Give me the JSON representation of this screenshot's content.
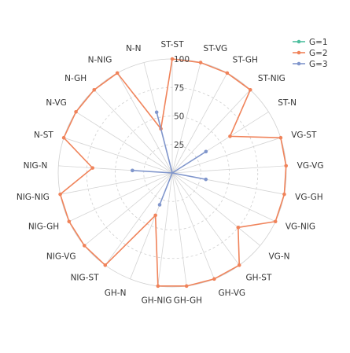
{
  "chart_data": {
    "type": "radar",
    "categories": [
      "ST-ST",
      "ST-VG",
      "ST-GH",
      "ST-NIG",
      "ST-N",
      "VG-ST",
      "VG-VG",
      "VG-GH",
      "VG-NIG",
      "VG-N",
      "GH-ST",
      "GH-VG",
      "GH-GH",
      "GH-NIG",
      "GH-N",
      "NIG-ST",
      "NIG-VG",
      "NIG-GH",
      "NIG-NIG",
      "NIG-N",
      "N-ST",
      "N-VG",
      "N-GH",
      "N-NIG",
      "N-N"
    ],
    "rlim": [
      0,
      100
    ],
    "rticks": [
      25,
      50,
      75,
      100
    ],
    "tick_labels": [
      "25",
      "50",
      "75",
      "100"
    ],
    "grid": true,
    "legend_position": "top-right",
    "series": [
      {
        "name": "G=1",
        "color": "#4fbf9f",
        "values": [
          0,
          0,
          0,
          0,
          0,
          0,
          0,
          0,
          0,
          0,
          0,
          0,
          0,
          0,
          0,
          0,
          0,
          0,
          0,
          0,
          0,
          0,
          0,
          0,
          0
        ]
      },
      {
        "name": "G=2",
        "color": "#f0835a",
        "values": [
          100,
          100,
          100,
          100,
          60,
          100,
          100,
          100,
          100,
          75,
          100,
          100,
          100,
          100,
          40,
          100,
          100,
          100,
          100,
          70,
          100,
          100,
          100,
          100,
          40
        ]
      },
      {
        "name": "G=3",
        "color": "#8096cc",
        "values": [
          0,
          0,
          0,
          0,
          35,
          0,
          0,
          30,
          0,
          0,
          0,
          0,
          0,
          0,
          30,
          0,
          0,
          0,
          0,
          35,
          0,
          0,
          0,
          0,
          55
        ]
      }
    ]
  }
}
